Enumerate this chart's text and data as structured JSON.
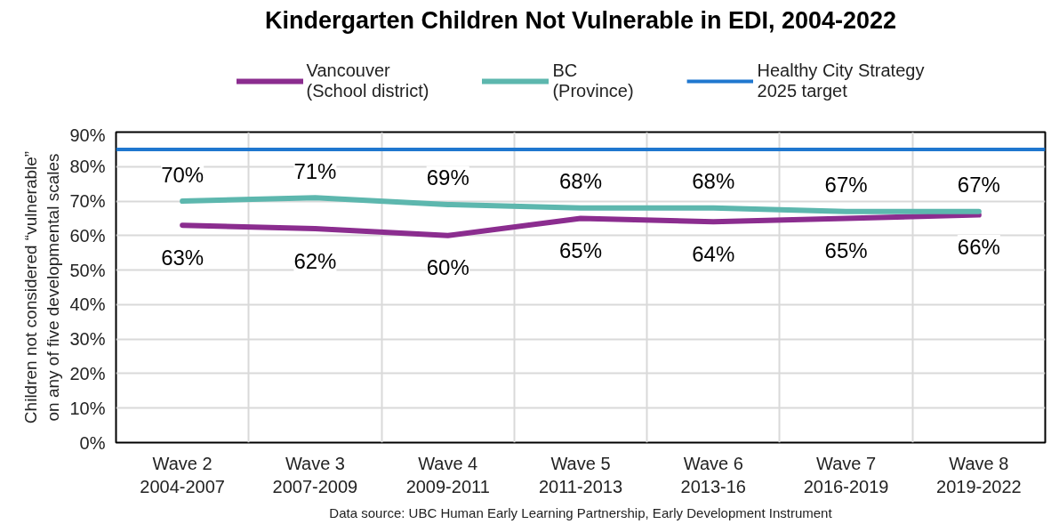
{
  "chart_data": {
    "type": "line",
    "title": "Kindergarten Children Not Vulnerable in EDI, 2004-2022",
    "ylabel": "Children not considered “vulnerable”\non any of five developmental scales",
    "categories": [
      "Wave 2\n2004-2007",
      "Wave 3\n2007-2009",
      "Wave 4\n2009-2011",
      "Wave 5\n2011-2013",
      "Wave 6\n2013-16",
      "Wave 7\n2016-2019",
      "Wave 8\n2019-2022"
    ],
    "series": [
      {
        "name": "Vancouver\n(School district)",
        "color": "#8b2d8f",
        "values": [
          63,
          62,
          60,
          65,
          64,
          65,
          66
        ],
        "value_labels": [
          "63%",
          "62%",
          "60%",
          "65%",
          "64%",
          "65%",
          "66%"
        ]
      },
      {
        "name": "BC\n(Province)",
        "color": "#5db7ae",
        "values": [
          70,
          71,
          69,
          68,
          68,
          67,
          67
        ],
        "value_labels": [
          "70%",
          "71%",
          "69%",
          "68%",
          "68%",
          "67%",
          "67%"
        ]
      }
    ],
    "ylim": [
      0,
      90
    ],
    "yticks": [
      {
        "value": 0,
        "label": "0%"
      },
      {
        "value": 10,
        "label": "10%"
      },
      {
        "value": 20,
        "label": "20%"
      },
      {
        "value": 30,
        "label": "30%"
      },
      {
        "value": 40,
        "label": "40%"
      },
      {
        "value": 50,
        "label": "50%"
      },
      {
        "value": 60,
        "label": "60%"
      },
      {
        "value": 70,
        "label": "70%"
      },
      {
        "value": 80,
        "label": "80%"
      },
      {
        "value": 90,
        "label": "90%"
      }
    ],
    "ref_lines": [
      {
        "axis": "y",
        "value": 85,
        "label": "Healthy City Strategy\n2025 target",
        "color": "#1f77cf"
      }
    ],
    "grid": true,
    "legend": "top",
    "annotations": [
      "Data source: UBC Human Early Learning Partnership, Early Development Instrument"
    ]
  }
}
